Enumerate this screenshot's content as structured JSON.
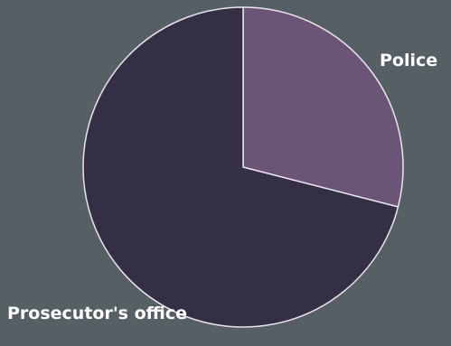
{
  "chart_data": {
    "type": "pie",
    "categories": [
      "Police",
      "Prosecutor's office"
    ],
    "values": [
      29,
      71
    ],
    "title": "",
    "legend": "none",
    "colors": {
      "Police": "#6b5577",
      "Prosecutor's office": "#342f45",
      "slice_border": "#e9e4ee",
      "background": "#565f64"
    },
    "labels": {
      "police": "Police",
      "prosecutor": "Prosecutor's office"
    }
  }
}
